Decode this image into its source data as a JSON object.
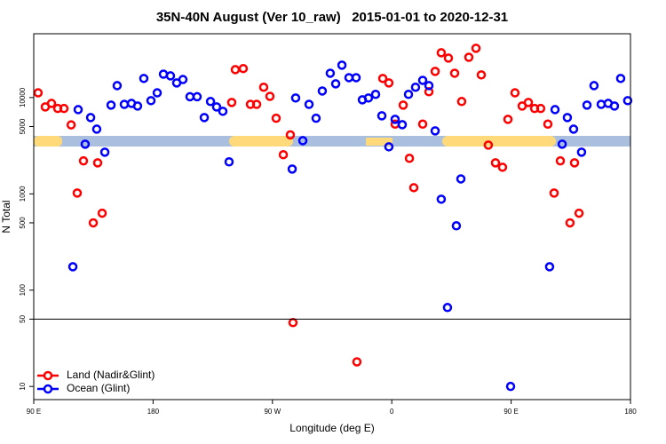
{
  "chart_data": {
    "type": "scatter",
    "title": "35N-40N August (Ver 10_raw)   2015-01-01 to 2020-12-31",
    "x_label": "Longitude (deg E)",
    "y_label": "N Total",
    "log_y": true,
    "legend": "bottomleft",
    "reference_line": 50,
    "xlim": [
      90,
      540
    ],
    "ylim": [
      7.3,
      46000
    ],
    "xticks": [
      {
        "value": 90,
        "label": "90 E"
      },
      180,
      {
        "value": 270,
        "label": "90 W"
      },
      {
        "value": 360,
        "label": "0"
      },
      {
        "value": 450,
        "label": "90 E"
      },
      {
        "value": 540,
        "label": "180"
      }
    ],
    "yticks": [
      10,
      50,
      100,
      500,
      1000,
      5000,
      10000
    ],
    "series": [
      {
        "name": "Land (Nadir&Glint)",
        "color": "#ff0000",
        "x": [
          93.3,
          98.7,
          103.4,
          108.1,
          112.8,
          118.2,
          122.8,
          127.5,
          134.9,
          138.2,
          141.6,
          239.3,
          242.0,
          248.0,
          253.4,
          258.1,
          263.4,
          268.1,
          272.8,
          278.2,
          283.5,
          285.5,
          333.7,
          353.2,
          357.8,
          362.5,
          368.6,
          373.3,
          376.6,
          383.3,
          388.0,
          392.7,
          397.3,
          402.7,
          407.4,
          412.7,
          418.1,
          423.5,
          427.5,
          432.8,
          438.2,
          443.5,
          447.6,
          452.9,
          458.3,
          463.0,
          467.7,
          472.3,
          477.7,
          482.4,
          487.1,
          494.4,
          497.8,
          501.2
        ],
        "values": [
          11200,
          8000,
          8700,
          7700,
          7700,
          5200,
          1020,
          2200,
          500,
          2100,
          630,
          8900,
          19500,
          20000,
          8500,
          8500,
          12800,
          10300,
          6100,
          2550,
          4100,
          46,
          18,
          15800,
          14200,
          5300,
          8350,
          2340,
          1160,
          5300,
          11500,
          18700,
          29200,
          25700,
          17900,
          9100,
          26200,
          32500,
          17200,
          3210,
          2100,
          1890,
          5940,
          11200,
          8170,
          8900,
          7700,
          7700,
          5300,
          1020,
          2200,
          500,
          2100,
          630
        ]
      },
      {
        "name": "Ocean (Glint)",
        "color": "#0000ff",
        "x": [
          119.5,
          123.5,
          128.8,
          132.9,
          137.5,
          143.6,
          148.3,
          152.9,
          158.3,
          163.7,
          168.3,
          173.0,
          178.4,
          183.1,
          187.8,
          193.1,
          197.8,
          202.5,
          207.8,
          213.2,
          218.6,
          223.3,
          227.9,
          232.6,
          237.3,
          284.9,
          287.5,
          292.9,
          297.6,
          302.9,
          307.6,
          313.6,
          317.7,
          322.4,
          327.7,
          333.1,
          337.8,
          342.4,
          347.8,
          352.5,
          357.8,
          362.5,
          367.9,
          372.6,
          377.9,
          383.3,
          388.0,
          392.7,
          397.3,
          402.0,
          408.7,
          412.1,
          449.6,
          479.0,
          483.1,
          488.5,
          492.4,
          497.1,
          503.1,
          507.2,
          512.5,
          517.9,
          523.2,
          527.9,
          532.6,
          537.9
        ],
        "values": [
          175,
          7500,
          3280,
          6200,
          4700,
          2710,
          8350,
          13300,
          8500,
          8700,
          8170,
          15800,
          9290,
          11200,
          17500,
          16800,
          14200,
          15400,
          10200,
          10200,
          6200,
          9100,
          8000,
          7200,
          2150,
          1810,
          9900,
          3570,
          8500,
          6100,
          11700,
          17900,
          13900,
          21700,
          16100,
          16100,
          9480,
          9900,
          10800,
          6470,
          3080,
          5940,
          5230,
          10800,
          12800,
          15100,
          13300,
          4510,
          880,
          66,
          466,
          1430,
          10,
          175,
          7500,
          3280,
          6200,
          4700,
          2710,
          8350,
          13300,
          8500,
          8700,
          8170,
          15800,
          9290
        ]
      }
    ]
  }
}
